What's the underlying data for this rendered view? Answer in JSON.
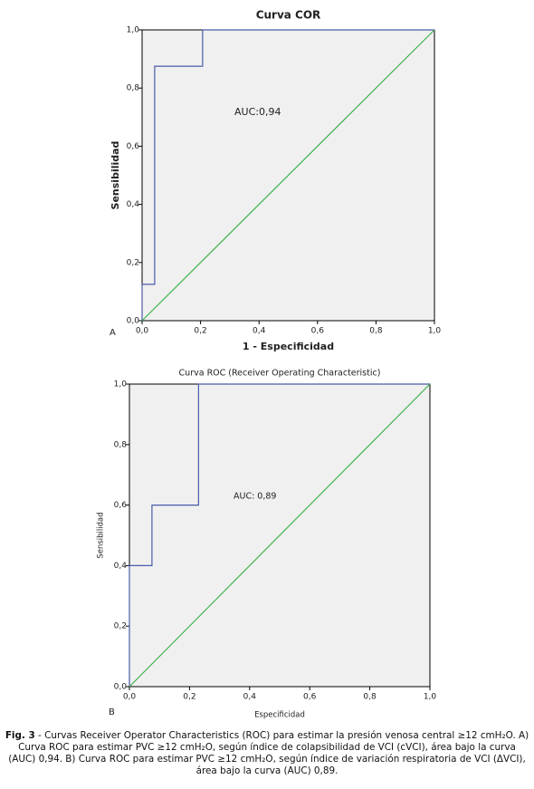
{
  "chart_data": [
    {
      "type": "line",
      "title": "Curva COR",
      "panel_label": "A",
      "xlabel": "1 - Especificidad",
      "ylabel": "Sensibilidad",
      "annotations": [
        "AUC:0,94"
      ],
      "xlim": [
        0,
        1
      ],
      "ylim": [
        0,
        1
      ],
      "xticks": [
        {
          "value": 0,
          "label": "0,0"
        },
        {
          "value": 0.2,
          "label": "0,2"
        },
        {
          "value": 0.4,
          "label": "0,4"
        },
        {
          "value": 0.6,
          "label": "0,6"
        },
        {
          "value": 0.8,
          "label": "0,8"
        },
        {
          "value": 1,
          "label": "1,0"
        }
      ],
      "yticks": [
        {
          "value": 0,
          "label": "0,0"
        },
        {
          "value": 0.2,
          "label": "0,2"
        },
        {
          "value": 0.4,
          "label": "0,4"
        },
        {
          "value": 0.6,
          "label": "0,6"
        },
        {
          "value": 0.8,
          "label": "0,8"
        },
        {
          "value": 1,
          "label": "1,0"
        }
      ],
      "series": [
        {
          "color": "#4a5bab",
          "x": [
            0,
            0,
            0.043,
            0.043,
            0.207,
            0.207,
            1
          ],
          "values": [
            0,
            0.125,
            0.125,
            0.875,
            0.875,
            1,
            1
          ]
        },
        {
          "color": "#3db24a",
          "x": [
            0,
            1
          ],
          "values": [
            0,
            1
          ]
        }
      ]
    },
    {
      "type": "line",
      "title": "Curva ROC (Receiver Operating Characteristic)",
      "panel_label": "B",
      "xlabel": "Especificidad",
      "ylabel": "Sensibilidad",
      "annotations": [
        "AUC: 0,89"
      ],
      "xlim": [
        0,
        1
      ],
      "ylim": [
        0,
        1
      ],
      "xticks": [
        {
          "value": 0,
          "label": "0,0"
        },
        {
          "value": 0.2,
          "label": "0,2"
        },
        {
          "value": 0.4,
          "label": "0,4"
        },
        {
          "value": 0.6,
          "label": "0,6"
        },
        {
          "value": 0.8,
          "label": "0,8"
        },
        {
          "value": 1,
          "label": "1,0"
        }
      ],
      "yticks": [
        {
          "value": 0,
          "label": "0,0"
        },
        {
          "value": 0.2,
          "label": "0,2"
        },
        {
          "value": 0.4,
          "label": "0,4"
        },
        {
          "value": 0.6,
          "label": "0,6"
        },
        {
          "value": 0.8,
          "label": "0,8"
        },
        {
          "value": 1,
          "label": "1,0"
        }
      ],
      "series": [
        {
          "color": "#4a5bab",
          "x": [
            0,
            0,
            0.075,
            0.075,
            0.23,
            0.23,
            1
          ],
          "values": [
            0,
            0.4,
            0.4,
            0.6,
            0.6,
            1,
            1
          ]
        },
        {
          "color": "#3db24a",
          "x": [
            0,
            1
          ],
          "values": [
            0,
            1
          ]
        }
      ]
    }
  ],
  "caption": {
    "label": "Fig. 3",
    "text": "- Curvas Receiver Operator Characteristics (ROC) para estimar la presión venosa central ≥12 cmH₂O. A) Curva ROC para estimar PVC ≥12 cmH₂O, según índice de colapsibilidad de VCI (cVCI), área bajo la curva (AUC) 0,94. B) Curva ROC para estimar PVC ≥12 cmH₂O, según índice de variación respiratoria de VCI (ΔVCI), área bajo la curva (AUC) 0,89."
  }
}
